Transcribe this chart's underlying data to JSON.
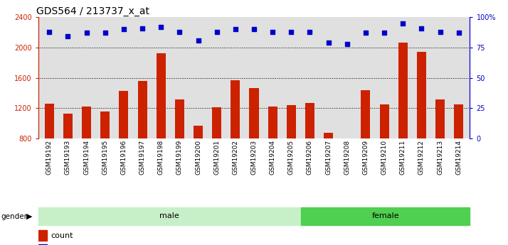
{
  "title": "GDS564 / 213737_x_at",
  "samples": [
    "GSM19192",
    "GSM19193",
    "GSM19194",
    "GSM19195",
    "GSM19196",
    "GSM19197",
    "GSM19198",
    "GSM19199",
    "GSM19200",
    "GSM19201",
    "GSM19202",
    "GSM19203",
    "GSM19204",
    "GSM19205",
    "GSM19206",
    "GSM19207",
    "GSM19208",
    "GSM19209",
    "GSM19210",
    "GSM19211",
    "GSM19212",
    "GSM19213",
    "GSM19214"
  ],
  "counts": [
    1255,
    1130,
    1220,
    1155,
    1430,
    1560,
    1920,
    1310,
    970,
    1215,
    1570,
    1460,
    1220,
    1235,
    1270,
    870,
    800,
    1440,
    1245,
    2060,
    1940,
    1310,
    1250
  ],
  "percentile_ranks": [
    88,
    84,
    87,
    87,
    90,
    91,
    92,
    88,
    81,
    88,
    90,
    90,
    88,
    88,
    88,
    79,
    78,
    87,
    87,
    95,
    91,
    88,
    87
  ],
  "gender": [
    "male",
    "male",
    "male",
    "male",
    "male",
    "male",
    "male",
    "male",
    "male",
    "male",
    "male",
    "male",
    "male",
    "male",
    "female",
    "female",
    "female",
    "female",
    "female",
    "female",
    "female",
    "female",
    "female"
  ],
  "male_color": "#c8f0c8",
  "female_color": "#50d050",
  "bar_color": "#cc2200",
  "dot_color": "#0000cc",
  "ylim_left": [
    800,
    2400
  ],
  "ylim_right": [
    0,
    100
  ],
  "yticks_left": [
    800,
    1200,
    1600,
    2000,
    2400
  ],
  "yticks_right": [
    0,
    25,
    50,
    75,
    100
  ],
  "grid_values": [
    1200,
    1600,
    2000
  ],
  "background_color": "#e0e0e0",
  "title_fontsize": 10
}
